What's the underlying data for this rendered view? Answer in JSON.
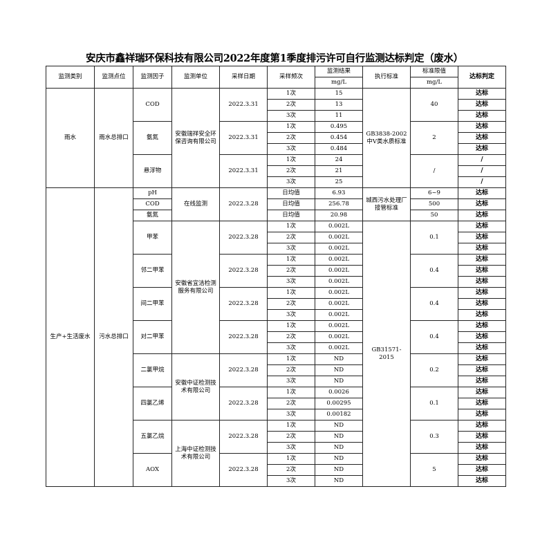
{
  "title": "安庆市鑫祥瑞环保科技有限公司2022年度第1季度排污许可自行监测达标判定（废水）",
  "header": {
    "category": "监测类别",
    "point": "监测点位",
    "factor": "监测因子",
    "agency": "监测单位",
    "date": "采样日期",
    "freq": "采样频次",
    "result": "监测结果",
    "result_unit": "mg/L",
    "standard": "执行标准",
    "limit": "标准限值",
    "limit_unit": "mg/L",
    "verdict": "达标判定"
  },
  "merged": {
    "category": [
      [
        "雨水",
        9
      ],
      [
        "生产+生活废水",
        27
      ]
    ],
    "point": [
      [
        "雨水总排口",
        9
      ],
      [
        "污水总排口",
        27
      ]
    ],
    "factor": [
      [
        "COD",
        3
      ],
      [
        "氨氮",
        3
      ],
      [
        "悬浮物",
        3
      ],
      [
        "pH",
        1
      ],
      [
        "COD",
        1
      ],
      [
        "氨氮",
        1
      ],
      [
        "甲苯",
        3
      ],
      [
        "邻二甲苯",
        3
      ],
      [
        "间二甲苯",
        3
      ],
      [
        "对二甲苯",
        3
      ],
      [
        "二氯甲烷",
        3
      ],
      [
        "四氯乙烯",
        3
      ],
      [
        "五氯乙烷",
        3
      ],
      [
        "AOX",
        3
      ]
    ],
    "agency": [
      [
        "安徽瑞祥安全环保咨询有限公司",
        9
      ],
      [
        "在线监测",
        3
      ],
      [
        "安徽省宜洁检测服务有限公司",
        12
      ],
      [
        "安徽中证检测技术有限公司",
        6
      ],
      [
        "上海中证检测技术有限公司",
        6
      ]
    ],
    "date": [
      [
        "2022.3.31",
        3
      ],
      [
        "2022.3.31",
        3
      ],
      [
        "2022.3.31",
        3
      ],
      [
        "2022.3.28",
        3
      ],
      [
        "2022.3.28",
        3
      ],
      [
        "2022.3.28",
        3
      ],
      [
        "2022.3.28",
        3
      ],
      [
        "2022.3.28",
        3
      ],
      [
        "2022.3.28",
        3
      ],
      [
        "2022.3.28",
        3
      ],
      [
        "2022.3.28",
        3
      ],
      [
        "2022.3.28",
        3
      ]
    ],
    "standard": [
      [
        "GB3838-2002中Ⅴ类水质标准",
        9
      ],
      [
        "城西污水处理厂接管标准",
        3
      ],
      [
        "GB31571-2015",
        24
      ]
    ],
    "limit": [
      [
        "40",
        3
      ],
      [
        "2",
        3
      ],
      [
        "/",
        3
      ],
      [
        "6~9",
        1
      ],
      [
        "500",
        1
      ],
      [
        "50",
        1
      ],
      [
        "0.1",
        3
      ],
      [
        "0.4",
        3
      ],
      [
        "0.4",
        3
      ],
      [
        "0.4",
        3
      ],
      [
        "0.2",
        3
      ],
      [
        "0.1",
        3
      ],
      [
        "0.3",
        3
      ],
      [
        "5",
        3
      ]
    ]
  },
  "rows": [
    [
      "1次",
      "15",
      "达标"
    ],
    [
      "2次",
      "13",
      "达标"
    ],
    [
      "3次",
      "11",
      "达标"
    ],
    [
      "1次",
      "0.495",
      "达标"
    ],
    [
      "2次",
      "0.454",
      "达标"
    ],
    [
      "3次",
      "0.484",
      "达标"
    ],
    [
      "1次",
      "24",
      "/"
    ],
    [
      "2次",
      "21",
      "/"
    ],
    [
      "3次",
      "25",
      "/"
    ],
    [
      "日均值",
      "6.93",
      "达标"
    ],
    [
      "日均值",
      "256.78",
      "达标"
    ],
    [
      "日均值",
      "20.98",
      "达标"
    ],
    [
      "1次",
      "0.002L",
      "达标"
    ],
    [
      "2次",
      "0.002L",
      "达标"
    ],
    [
      "3次",
      "0.002L",
      "达标"
    ],
    [
      "1次",
      "0.002L",
      "达标"
    ],
    [
      "2次",
      "0.002L",
      "达标"
    ],
    [
      "3次",
      "0.002L",
      "达标"
    ],
    [
      "1次",
      "0.002L",
      "达标"
    ],
    [
      "2次",
      "0.002L",
      "达标"
    ],
    [
      "3次",
      "0.002L",
      "达标"
    ],
    [
      "1次",
      "0.002L",
      "达标"
    ],
    [
      "2次",
      "0.002L",
      "达标"
    ],
    [
      "3次",
      "0.002L",
      "达标"
    ],
    [
      "1次",
      "ND",
      "达标"
    ],
    [
      "2次",
      "ND",
      "达标"
    ],
    [
      "3次",
      "ND",
      "达标"
    ],
    [
      "1次",
      "0.0026",
      "达标"
    ],
    [
      "2次",
      "0.00295",
      "达标"
    ],
    [
      "3次",
      "0.00182",
      "达标"
    ],
    [
      "1次",
      "ND",
      "达标"
    ],
    [
      "2次",
      "ND",
      "达标"
    ],
    [
      "3次",
      "ND",
      "达标"
    ],
    [
      "1次",
      "ND",
      "达标"
    ],
    [
      "2次",
      "ND",
      "达标"
    ],
    [
      "3次",
      "ND",
      "达标"
    ]
  ]
}
